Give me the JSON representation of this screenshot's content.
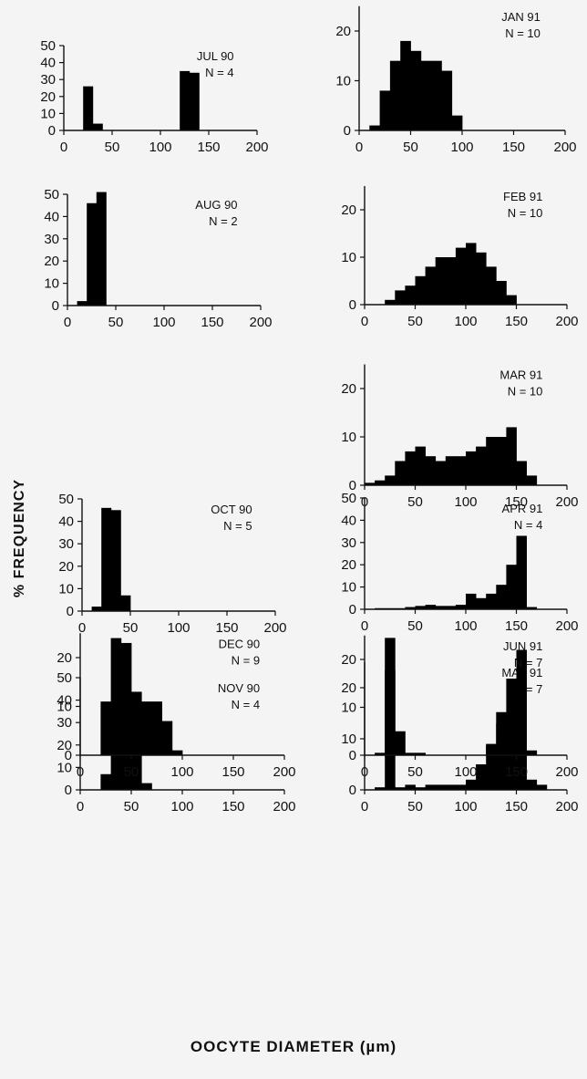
{
  "figure": {
    "ylabel": "% FREQUENCY",
    "xlabel": "OOCYTE DIAMETER (µm)"
  },
  "chart_data": [
    {
      "type": "bar",
      "title": "JUL 90",
      "n": "N = 4",
      "xlim": [
        0,
        200
      ],
      "yticks": [
        0,
        10,
        20,
        30,
        40,
        50
      ],
      "x": [
        15,
        25,
        35,
        125,
        135,
        145
      ],
      "values": [
        0,
        26,
        4,
        35,
        34,
        0
      ]
    },
    {
      "type": "bar",
      "title": "AUG 90",
      "n": "N = 2",
      "xlim": [
        0,
        200
      ],
      "yticks": [
        0,
        10,
        20,
        30,
        40,
        50
      ],
      "x": [
        15,
        25,
        35
      ],
      "values": [
        2,
        46,
        51
      ]
    },
    {
      "type": "bar",
      "title": "OCT 90",
      "n": "N = 5",
      "xlim": [
        0,
        200
      ],
      "yticks": [
        0,
        10,
        20,
        30,
        40,
        50
      ],
      "x": [
        15,
        25,
        35,
        45
      ],
      "values": [
        2,
        46,
        45,
        7
      ]
    },
    {
      "type": "bar",
      "title": "NOV 90",
      "n": "N = 4",
      "xlim": [
        0,
        200
      ],
      "yticks": [
        0,
        10,
        20,
        30,
        40,
        50
      ],
      "x": [
        25,
        35,
        45,
        55,
        65
      ],
      "values": [
        7,
        31,
        34,
        16,
        3
      ]
    },
    {
      "type": "bar",
      "title": "DEC 90",
      "n": "N = 9",
      "xlim": [
        0,
        200
      ],
      "yticks": [
        0,
        10,
        20
      ],
      "x": [
        25,
        35,
        45,
        55,
        65,
        75,
        85,
        95
      ],
      "values": [
        11,
        24,
        23,
        13,
        11,
        11,
        7,
        1
      ]
    },
    {
      "type": "bar",
      "title": "JAN 91",
      "n": "N = 10",
      "xlim": [
        0,
        200
      ],
      "yticks": [
        0,
        10,
        20
      ],
      "x": [
        15,
        25,
        35,
        45,
        55,
        65,
        75,
        85,
        95
      ],
      "values": [
        1,
        8,
        14,
        18,
        16,
        14,
        14,
        12,
        3
      ]
    },
    {
      "type": "bar",
      "title": "FEB 91",
      "n": "N = 10",
      "xlim": [
        0,
        200
      ],
      "yticks": [
        0,
        10,
        20
      ],
      "x": [
        25,
        35,
        45,
        55,
        65,
        75,
        85,
        95,
        105,
        115,
        125,
        135,
        145
      ],
      "values": [
        1,
        3,
        4,
        6,
        8,
        10,
        10,
        12,
        13,
        11,
        8,
        5,
        2
      ]
    },
    {
      "type": "bar",
      "title": "MAR 91",
      "n": "N = 10",
      "xlim": [
        0,
        200
      ],
      "yticks": [
        0,
        10,
        20
      ],
      "x": [
        5,
        15,
        25,
        35,
        45,
        55,
        65,
        75,
        85,
        95,
        105,
        115,
        125,
        135,
        145,
        155,
        165
      ],
      "values": [
        0.5,
        1,
        2,
        5,
        7,
        8,
        6,
        5,
        6,
        6,
        7,
        8,
        10,
        10,
        12,
        5,
        2
      ]
    },
    {
      "type": "bar",
      "title": "APR 91",
      "n": "N = 4",
      "xlim": [
        0,
        200
      ],
      "yticks": [
        0,
        10,
        20,
        30,
        40,
        50
      ],
      "x": [
        15,
        25,
        35,
        45,
        55,
        65,
        75,
        85,
        95,
        105,
        115,
        125,
        135,
        145,
        155,
        165
      ],
      "values": [
        0.5,
        0.5,
        0.5,
        1,
        1.5,
        2,
        1.5,
        1.5,
        2,
        7,
        5,
        7,
        11,
        20,
        33,
        1
      ]
    },
    {
      "type": "bar",
      "title": "MAY 91",
      "n": "N = 7",
      "xlim": [
        0,
        200
      ],
      "yticks": [
        0,
        10,
        20
      ],
      "x": [
        15,
        25,
        35,
        45,
        55,
        65,
        75,
        85,
        95,
        105,
        115,
        125,
        135,
        145,
        155,
        165,
        175
      ],
      "values": [
        0.5,
        23.5,
        0.5,
        1,
        0.5,
        1,
        1,
        1,
        1,
        2,
        5,
        9,
        13,
        15,
        9,
        2,
        1
      ]
    },
    {
      "type": "bar",
      "title": "JUN 91",
      "n": "N = 7",
      "xlim": [
        0,
        200
      ],
      "yticks": [
        0,
        10,
        20
      ],
      "x": [
        15,
        25,
        35,
        45,
        55,
        125,
        135,
        145,
        155,
        165
      ],
      "values": [
        0.5,
        24.5,
        5,
        0.5,
        0.5,
        2,
        9,
        16,
        22,
        1
      ]
    }
  ]
}
